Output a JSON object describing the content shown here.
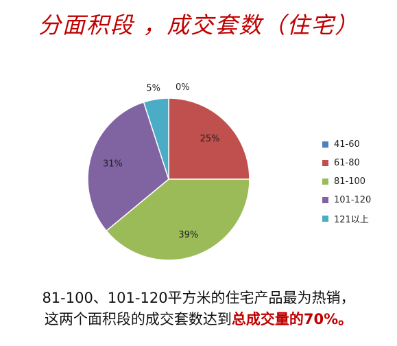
{
  "title": "分面积段 ，成交套数（住宅）",
  "chart_data": {
    "type": "pie",
    "slices": [
      {
        "label": "41-60",
        "value": 0,
        "display": "0%",
        "color": "#4f81bd"
      },
      {
        "label": "61-80",
        "value": 25,
        "display": "25%",
        "color": "#c0504d"
      },
      {
        "label": "81-100",
        "value": 39,
        "display": "39%",
        "color": "#9bbb59"
      },
      {
        "label": "101-120",
        "value": 31,
        "display": "31%",
        "color": "#8064a2"
      },
      {
        "label": "121以上",
        "value": 5,
        "display": "5%",
        "color": "#4bacc6"
      }
    ],
    "legend_position": "right"
  },
  "caption": {
    "line1": "81-100、101-120平方米的住宅产品最为热销，",
    "line2_prefix": "这两个面积段的成交套数达到",
    "line2_highlight": "总成交量的70%。"
  }
}
